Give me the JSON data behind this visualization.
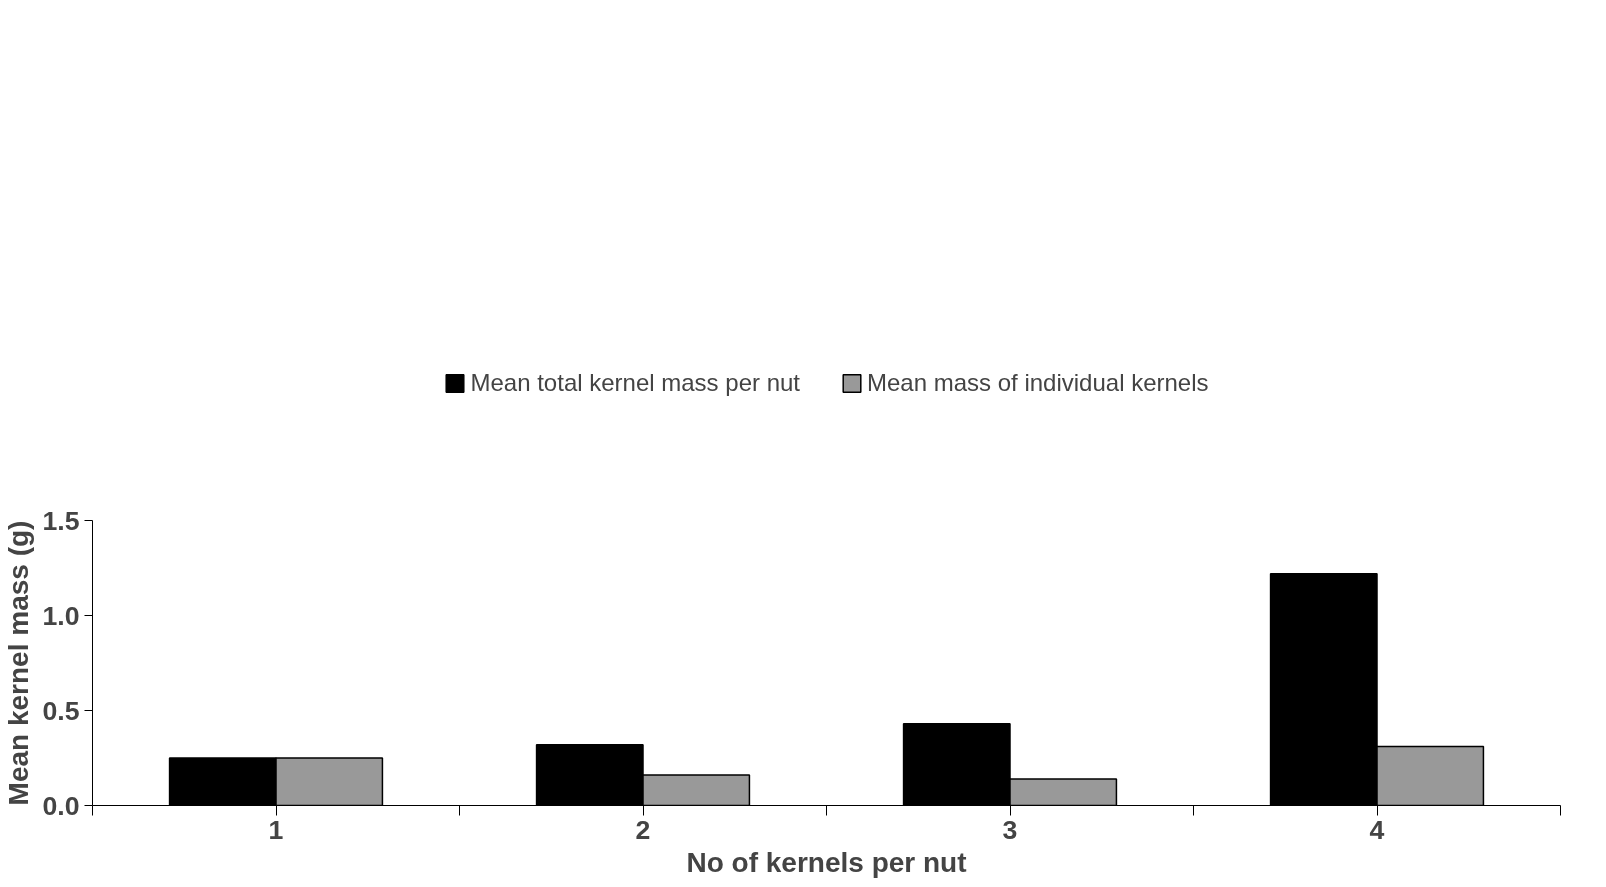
{
  "chart_data": {
    "type": "bar",
    "xlabel": "No of kernels per nut",
    "ylabel": "Mean kernel mass (g)",
    "categories": [
      "1",
      "2",
      "3",
      "4"
    ],
    "series": [
      {
        "name": "Mean total kernel mass per nut",
        "color": "#000000",
        "values": [
          0.25,
          0.32,
          0.43,
          1.22
        ]
      },
      {
        "name": "Mean mass of individual kernels",
        "color": "#999999",
        "values": [
          0.25,
          0.16,
          0.14,
          0.31
        ]
      }
    ],
    "ylim": [
      0,
      1.5
    ],
    "yticks": [
      {
        "value": 0,
        "label": "0.0"
      },
      {
        "value": 0.5,
        "label": "0.5"
      },
      {
        "value": 1,
        "label": "1.0"
      },
      {
        "value": 1.5,
        "label": "1.5"
      }
    ],
    "grid": false,
    "legend": "top"
  }
}
